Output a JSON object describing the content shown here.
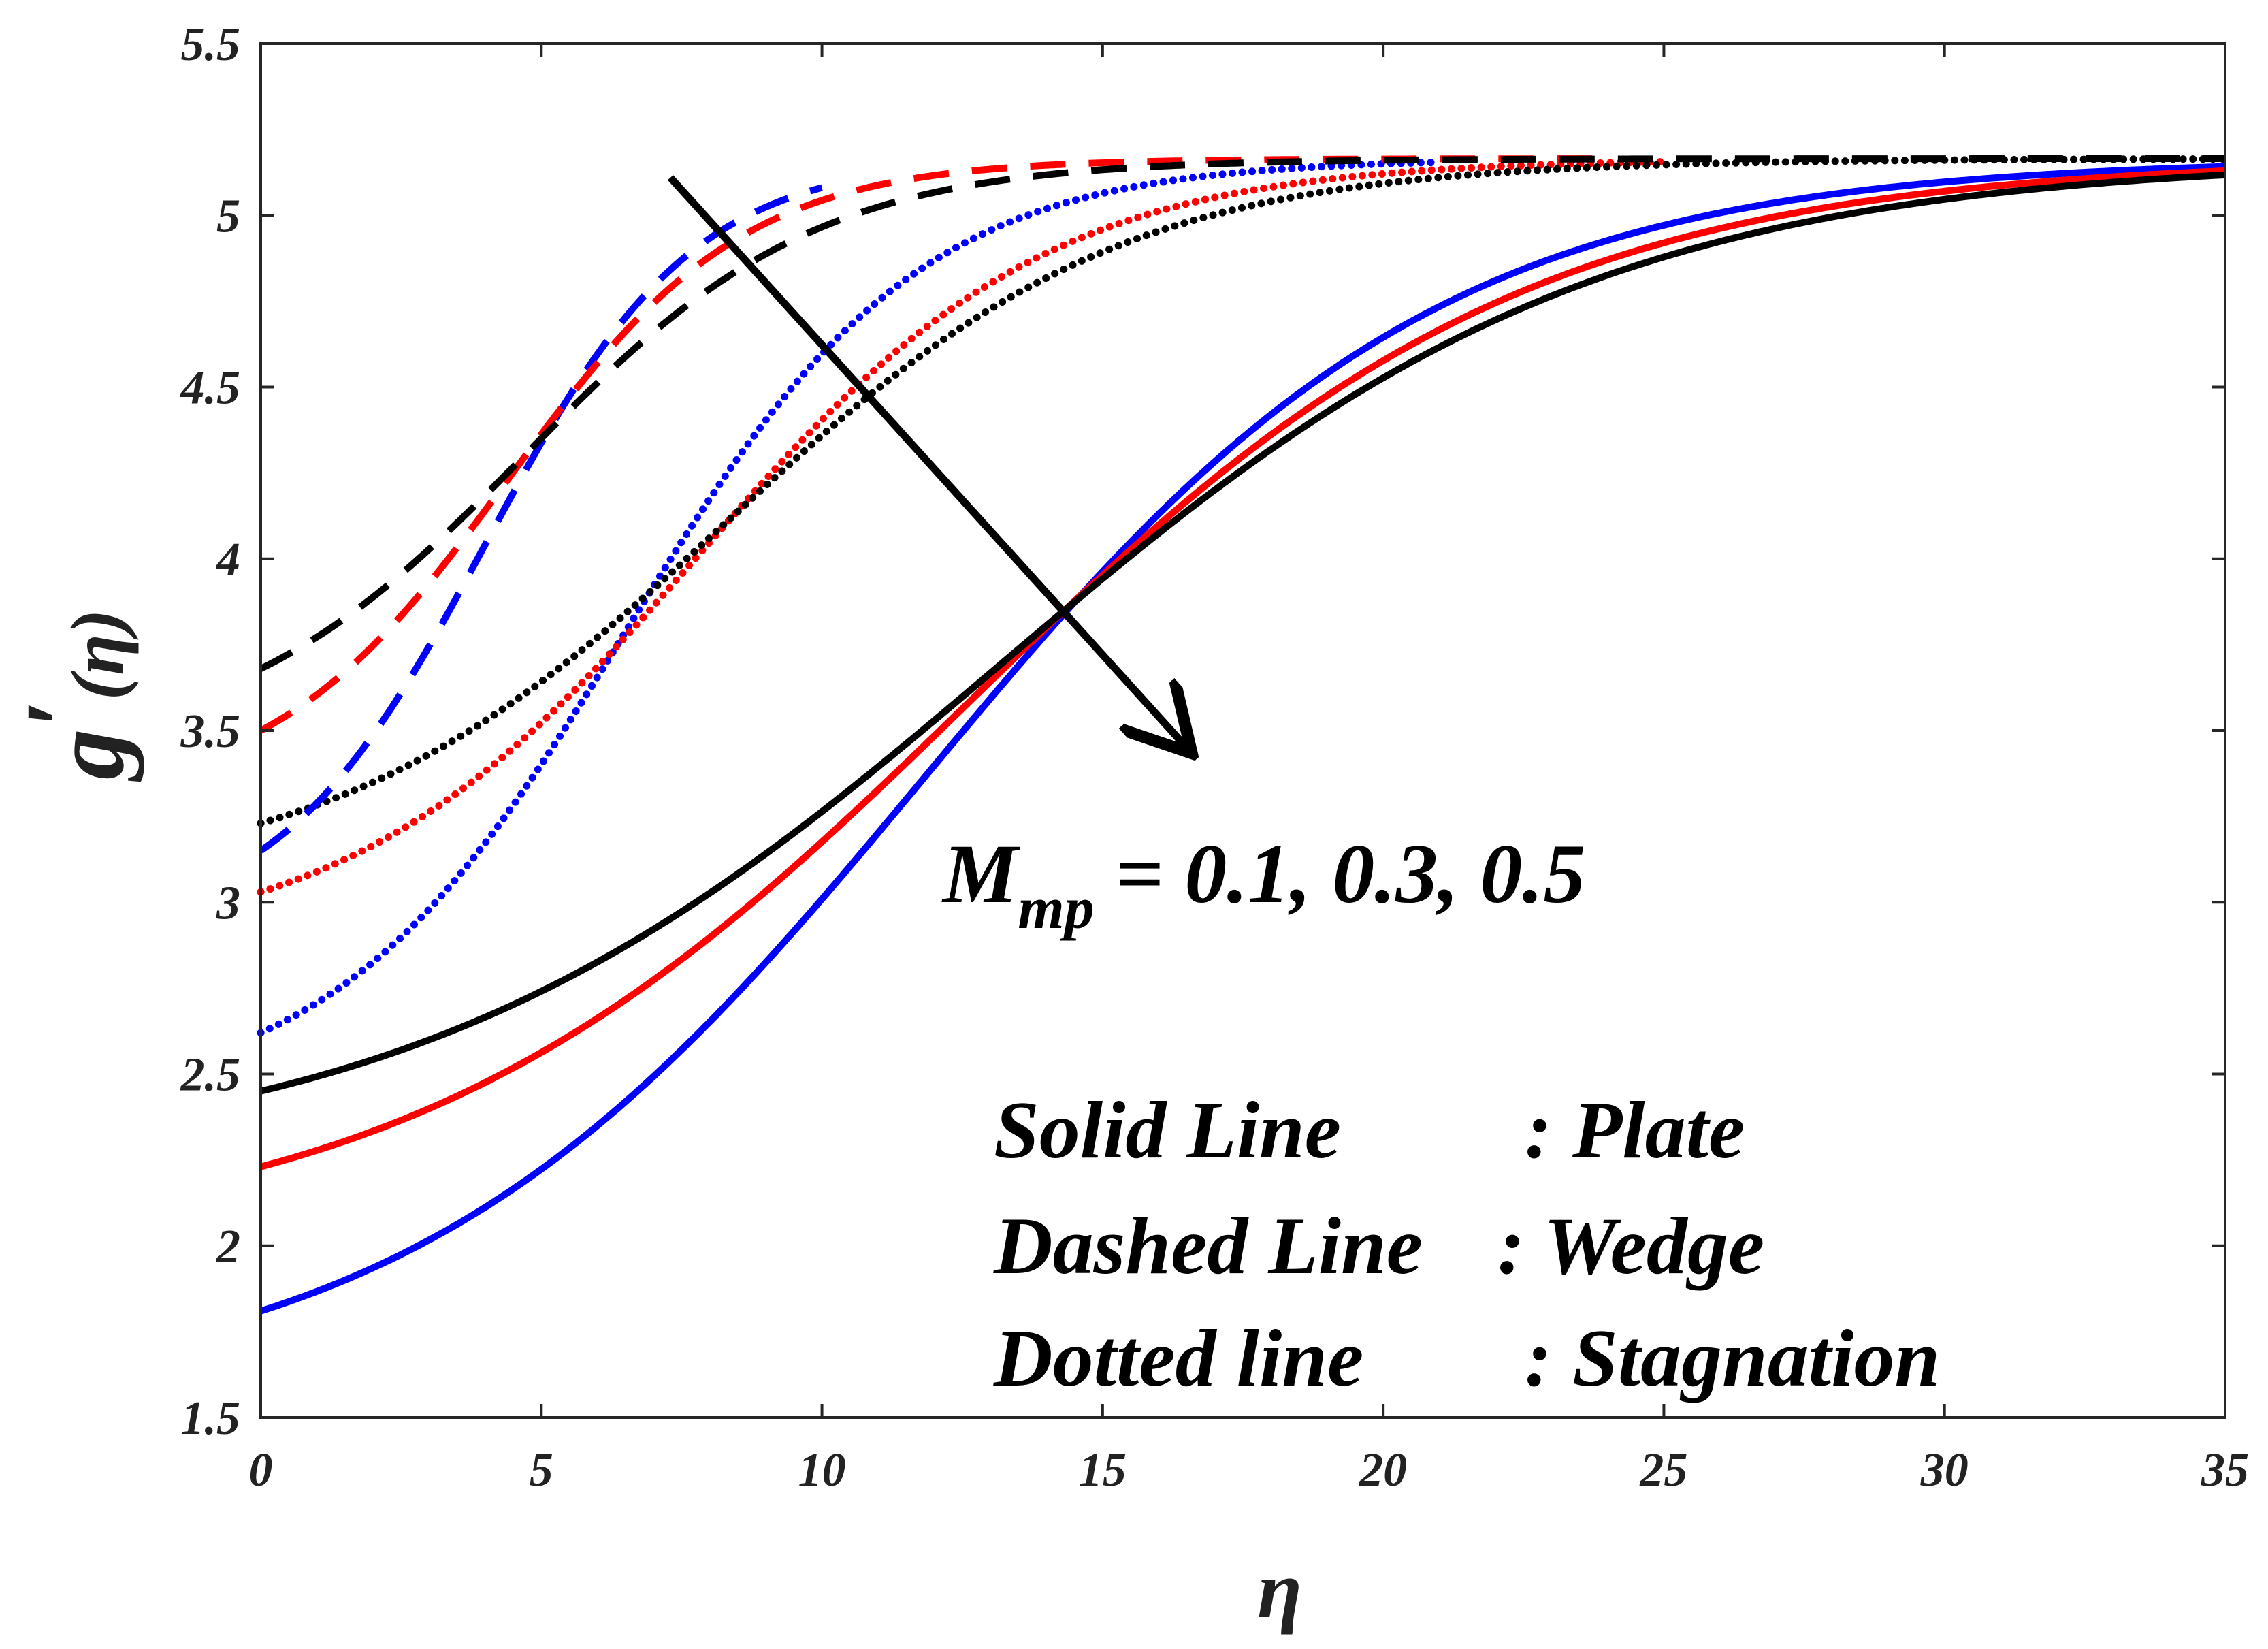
{
  "chart_data": {
    "type": "line",
    "title": "",
    "xlabel": "η",
    "ylabel_main": "g",
    "ylabel_prime": "′",
    "ylabel_arg": "(η)",
    "xlim": [
      0,
      35
    ],
    "ylim": [
      1.5,
      5.5
    ],
    "xticks": [
      0,
      5,
      10,
      15,
      20,
      25,
      30,
      35
    ],
    "xtick_labels": [
      "0",
      "5",
      "10",
      "15",
      "20",
      "25",
      "30",
      "35"
    ],
    "yticks": [
      1.5,
      2,
      2.5,
      3,
      3.5,
      4,
      4.5,
      5,
      5.5
    ],
    "ytick_labels": [
      "1.5",
      "2",
      "2.5",
      "3",
      "3.5",
      "4",
      "4.5",
      "5",
      "5.5"
    ],
    "grid": false,
    "colors": {
      "blue": "#0000ff",
      "red": "#ff0000",
      "black": "#000000",
      "axis": "#262626"
    },
    "series": [
      {
        "name": "Plate M=0.1",
        "style": "solid",
        "color": "#0000ff",
        "start": 1.81,
        "end": 5.165,
        "center": 11.8,
        "width": 4.6
      },
      {
        "name": "Plate M=0.3",
        "style": "solid",
        "color": "#ff0000",
        "start": 2.23,
        "end": 5.165,
        "center": 12.6,
        "width": 5.0
      },
      {
        "name": "Plate M=0.5",
        "style": "solid",
        "color": "#000000",
        "start": 2.45,
        "end": 5.165,
        "center": 13.2,
        "width": 5.3
      },
      {
        "name": "Wedge M=0.1",
        "style": "dashed",
        "color": "#0000ff",
        "start": 3.15,
        "end": 5.165,
        "center": 4.0,
        "width": 1.85,
        "x_end": 10
      },
      {
        "name": "Wedge M=0.3",
        "style": "dashed",
        "color": "#ff0000",
        "start": 3.5,
        "end": 5.165,
        "center": 4.4,
        "width": 2.1,
        "x_end": 24
      },
      {
        "name": "Wedge M=0.5",
        "style": "dashed",
        "color": "#000000",
        "start": 3.68,
        "end": 5.165,
        "center": 4.7,
        "width": 2.6
      },
      {
        "name": "Stagnation M=0.1",
        "style": "dotted",
        "color": "#0000ff",
        "start": 2.62,
        "end": 5.165,
        "center": 6.5,
        "width": 2.6,
        "x_end": 21
      },
      {
        "name": "Stagnation M=0.3",
        "style": "dotted",
        "color": "#ff0000",
        "start": 3.03,
        "end": 5.165,
        "center": 7.8,
        "width": 3.1,
        "x_end": 25
      },
      {
        "name": "Stagnation M=0.5",
        "style": "dotted",
        "color": "#000000",
        "start": 3.23,
        "end": 5.165,
        "center": 8.3,
        "width": 3.5
      }
    ],
    "arrow": {
      "x_start": 7.3,
      "y_start": 5.11,
      "x_end": 16.5,
      "y_end": 3.45
    },
    "annotations": {
      "param_symbol": "M",
      "param_subscript": "mp",
      "param_values": " = 0.1, 0.3, 0.5",
      "legend_line1": "Solid Line",
      "legend_line1_value": ": Plate",
      "legend_line2": "Dashed Line",
      "legend_line2_value": ": Wedge",
      "legend_line3": "Dotted line",
      "legend_line3_value": ": Stagnation"
    }
  }
}
